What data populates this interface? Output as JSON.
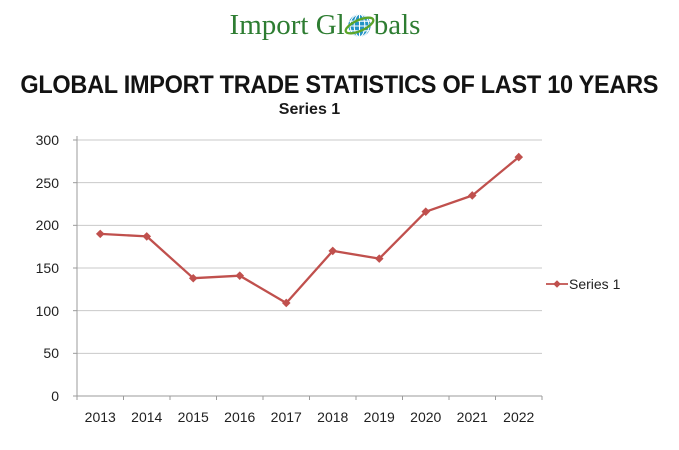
{
  "logo": {
    "text_before": "Import Gl",
    "text_after": "bals",
    "colors": {
      "text_green": "#2e7d32",
      "globe_blue": "#2293c5",
      "swoosh_green": "#5ba529"
    }
  },
  "page_title": "GLOBAL IMPORT TRADE STATISTICS OF LAST 10 YEARS",
  "chart_data": {
    "type": "line",
    "title": "Series 1",
    "categories": [
      "2013",
      "2014",
      "2015",
      "2016",
      "2017",
      "2018",
      "2019",
      "2020",
      "2021",
      "2022"
    ],
    "series": [
      {
        "name": "Series 1",
        "values": [
          190,
          187,
          138,
          141,
          109,
          170,
          161,
          216,
          235,
          280
        ],
        "color": "#C0504D",
        "marker": "diamond"
      }
    ],
    "xlabel": "",
    "ylabel": "",
    "ylim": [
      0,
      300
    ],
    "yticks": [
      0,
      50,
      100,
      150,
      200,
      250,
      300
    ],
    "grid": true,
    "gridline_color": "#c9c9c9",
    "axis_color": "#9b9b9b",
    "label_color": "#1f1f1f",
    "legend_position": "right"
  }
}
